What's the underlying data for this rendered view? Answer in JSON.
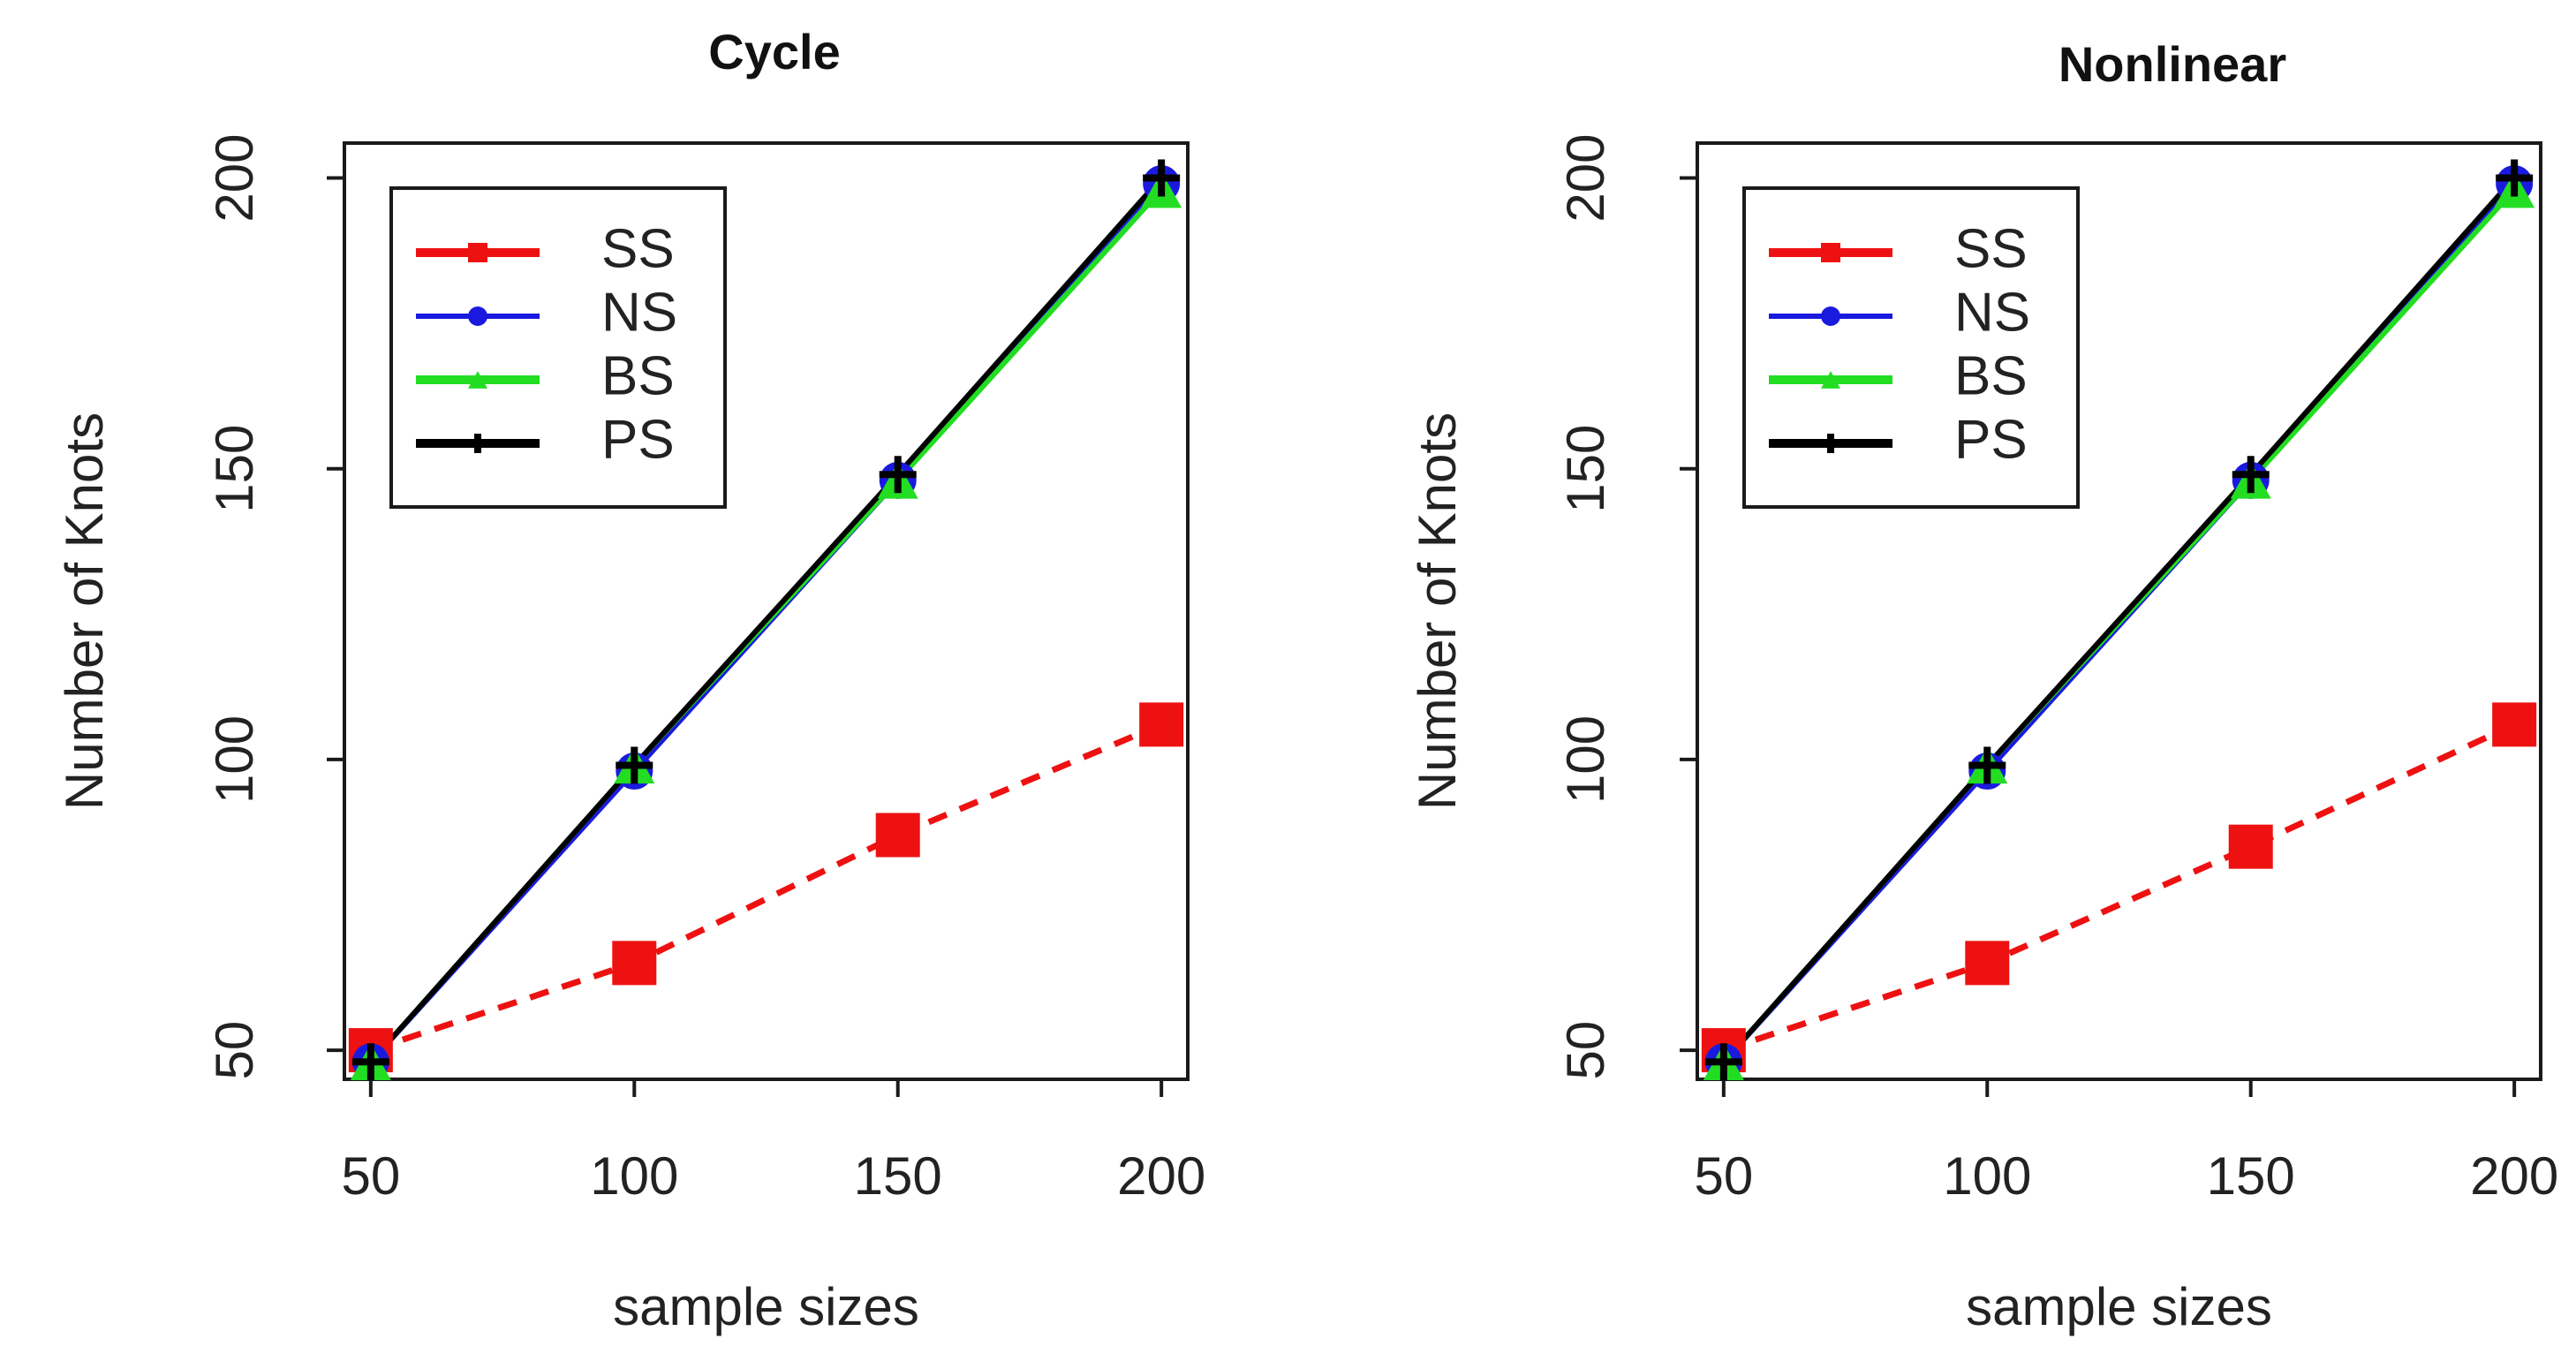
{
  "chart_data": [
    {
      "type": "line",
      "title": "Cycle",
      "xlabel": "sample sizes",
      "ylabel": "Number of Knots",
      "x": [
        50,
        100,
        150,
        200
      ],
      "xlim": [
        45,
        205
      ],
      "ylim": [
        45,
        206
      ],
      "xticks": [
        "50",
        "100",
        "150",
        "200"
      ],
      "yticks": [
        "50",
        "100",
        "150",
        "200"
      ],
      "grid": false,
      "legend_position": "top-left",
      "series": [
        {
          "name": "SS",
          "values": [
            50,
            65,
            87,
            106
          ],
          "color": "#ee1111",
          "marker": "square",
          "line": "dashed"
        },
        {
          "name": "NS",
          "values": [
            48,
            98,
            148,
            199
          ],
          "color": "#1a1adf",
          "marker": "circle",
          "line": "solid"
        },
        {
          "name": "BS",
          "values": [
            48,
            99,
            148,
            198
          ],
          "color": "#22dd22",
          "marker": "triangle",
          "line": "solid"
        },
        {
          "name": "PS",
          "values": [
            48,
            99,
            149,
            200
          ],
          "color": "#000000",
          "marker": "plus",
          "line": "solid"
        }
      ]
    },
    {
      "type": "line",
      "title": "Nonlinear",
      "xlabel": "sample sizes",
      "ylabel": "Number of Knots",
      "x": [
        50,
        100,
        150,
        200
      ],
      "xlim": [
        45,
        205
      ],
      "ylim": [
        45,
        206
      ],
      "xticks": [
        "50",
        "100",
        "150",
        "200"
      ],
      "yticks": [
        "50",
        "100",
        "150",
        "200"
      ],
      "grid": false,
      "legend_position": "top-left",
      "series": [
        {
          "name": "SS",
          "values": [
            50,
            65,
            85,
            106
          ],
          "color": "#ee1111",
          "marker": "square",
          "line": "dashed"
        },
        {
          "name": "NS",
          "values": [
            48,
            98,
            148,
            199
          ],
          "color": "#1a1adf",
          "marker": "circle",
          "line": "solid"
        },
        {
          "name": "BS",
          "values": [
            48,
            99,
            148,
            198
          ],
          "color": "#22dd22",
          "marker": "triangle",
          "line": "solid"
        },
        {
          "name": "PS",
          "values": [
            48,
            99,
            149,
            200
          ],
          "color": "#000000",
          "marker": "plus",
          "line": "solid"
        }
      ]
    }
  ]
}
